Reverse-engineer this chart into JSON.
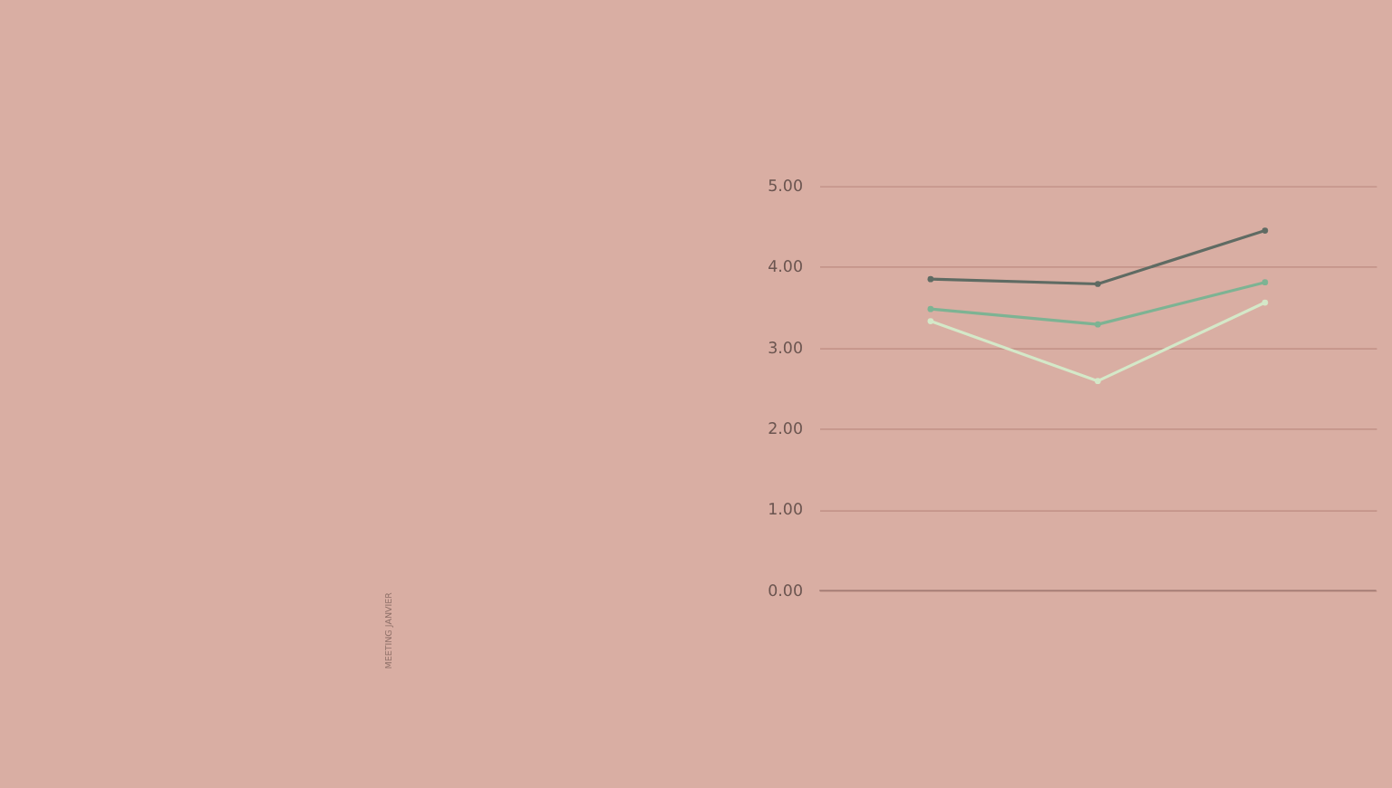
{
  "chart_data": {
    "type": "line",
    "categories": [
      null,
      null,
      null
    ],
    "series": [
      {
        "color": "#5f6b63",
        "values": [
          3.85,
          3.79,
          4.45
        ]
      },
      {
        "color": "#7db393",
        "values": [
          3.48,
          3.29,
          3.81
        ]
      },
      {
        "color": "#d4e8c8",
        "values": [
          3.33,
          2.59,
          3.56
        ]
      }
    ],
    "ylim": [
      0,
      5
    ],
    "yticks": [
      {
        "value": 0,
        "label": "0.00"
      },
      {
        "value": 1,
        "label": "1.00"
      },
      {
        "value": 2,
        "label": "2.00"
      },
      {
        "value": 3,
        "label": "3.00"
      },
      {
        "value": 4,
        "label": "4.00"
      },
      {
        "value": 5,
        "label": "5.00"
      }
    ],
    "grid": "y",
    "marker": "circle",
    "line_style": "solid",
    "legend": false,
    "annotations": [
      "MEETING JANVIER"
    ]
  }
}
